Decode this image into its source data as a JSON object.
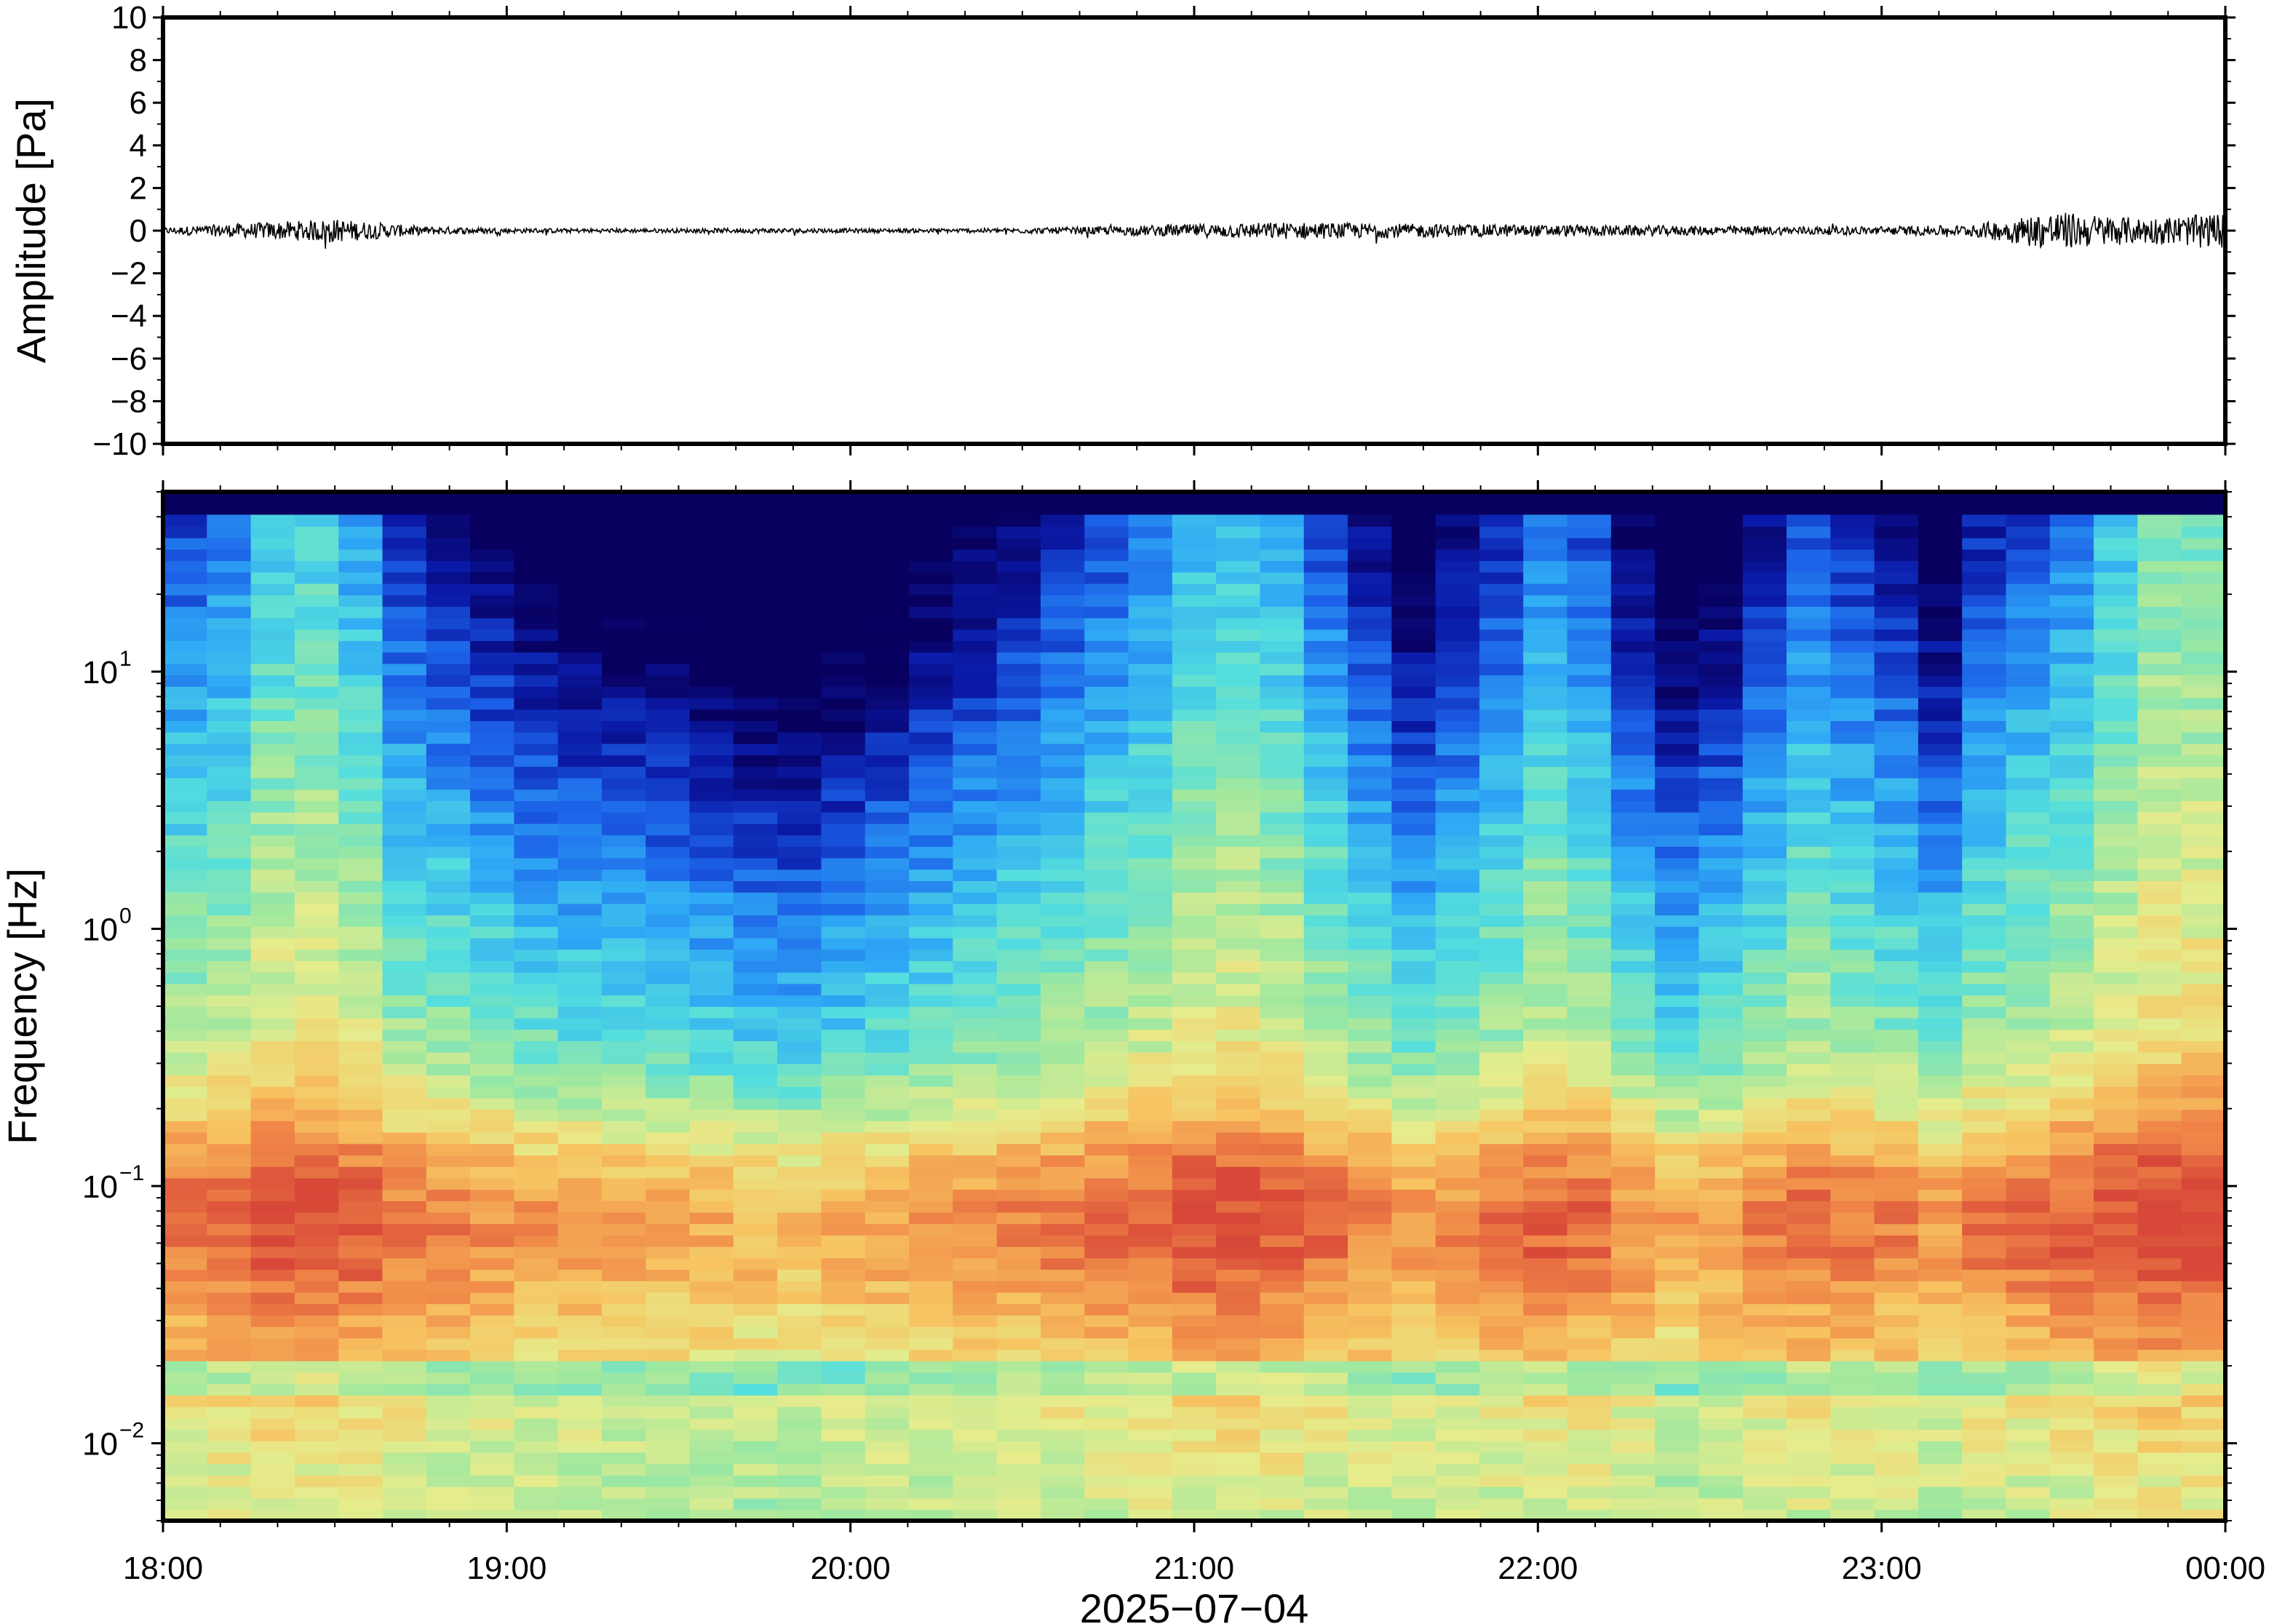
{
  "chart_data": [
    {
      "type": "line",
      "ylabel": "Amplitude [Pa]",
      "ylim": [
        -10,
        10
      ],
      "yticks": [
        "10",
        "8",
        "6",
        "4",
        "2",
        "0",
        "−2",
        "−4",
        "−6",
        "−8",
        "−10"
      ],
      "ytick_values": [
        10,
        8,
        6,
        4,
        2,
        0,
        -2,
        -4,
        -6,
        -8,
        -10
      ],
      "xlim": [
        "18:00",
        "00:00"
      ],
      "grid": false,
      "series": [
        {
          "x": [
            "18:00",
            "18:15",
            "18:30",
            "18:45",
            "19:00",
            "19:15",
            "19:30",
            "19:45",
            "20:00",
            "20:15",
            "20:30",
            "20:45",
            "21:00",
            "21:15",
            "21:30",
            "21:45",
            "22:00",
            "22:15",
            "22:30",
            "22:45",
            "23:00",
            "23:15",
            "23:30",
            "23:45",
            "00:00"
          ],
          "envelope": [
            0.15,
            0.35,
            0.55,
            0.2,
            0.12,
            0.1,
            0.1,
            0.12,
            0.1,
            0.1,
            0.12,
            0.2,
            0.3,
            0.4,
            0.35,
            0.3,
            0.28,
            0.25,
            0.22,
            0.2,
            0.2,
            0.25,
            0.9,
            0.6,
            0.8
          ],
          "color": "#000000"
        }
      ]
    },
    {
      "type": "heatmap",
      "ylabel": "Frequency [Hz]",
      "xlabel": "2025−07−04",
      "xticks": [
        "18:00",
        "19:00",
        "20:00",
        "21:00",
        "22:00",
        "23:00",
        "00:00"
      ],
      "yscale": "log",
      "ylim": [
        0.005,
        50
      ],
      "yticks": [
        {
          "value": 10,
          "base": "10",
          "exp": "1"
        },
        {
          "value": 1,
          "base": "10",
          "exp": "0"
        },
        {
          "value": 0.1,
          "base": "10",
          "exp": "−1"
        },
        {
          "value": 0.01,
          "base": "10",
          "exp": "−2"
        }
      ],
      "colormap": [
        "#08005f",
        "#0a1aa8",
        "#1c62e8",
        "#2faaf5",
        "#54dede",
        "#9ee8a0",
        "#e6ec8c",
        "#f7c360",
        "#f08848",
        "#d84838"
      ],
      "column_activity": [
        0.55,
        0.6,
        0.7,
        0.72,
        0.65,
        0.5,
        0.45,
        0.4,
        0.35,
        0.32,
        0.3,
        0.28,
        0.26,
        0.22,
        0.2,
        0.25,
        0.3,
        0.35,
        0.4,
        0.45,
        0.5,
        0.55,
        0.6,
        0.68,
        0.7,
        0.65,
        0.55,
        0.45,
        0.35,
        0.42,
        0.5,
        0.6,
        0.55,
        0.4,
        0.3,
        0.35,
        0.45,
        0.55,
        0.5,
        0.45,
        0.35,
        0.5,
        0.55,
        0.6,
        0.7,
        0.78,
        0.78
      ],
      "grid": false
    }
  ]
}
